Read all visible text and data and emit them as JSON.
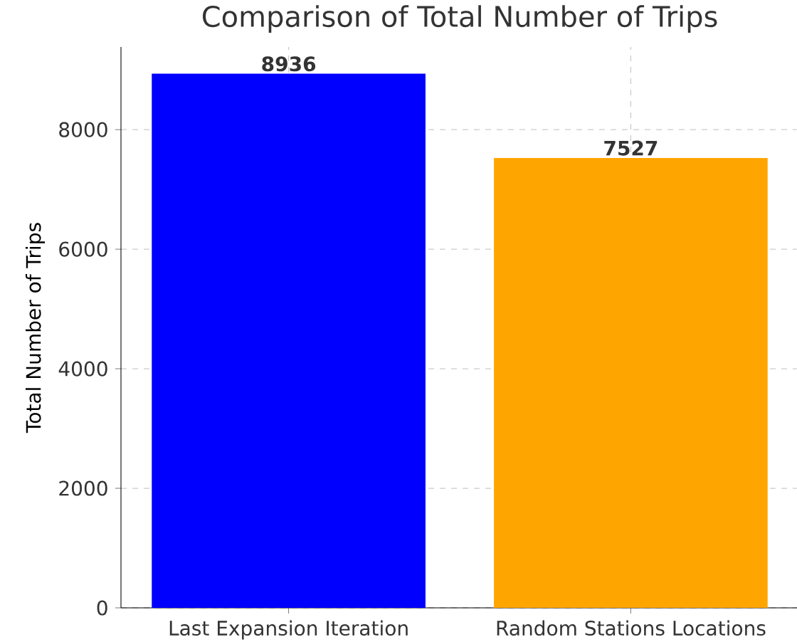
{
  "chart_data": {
    "type": "bar",
    "title": "Comparison of Total Number of Trips",
    "ylabel": "Total Number of Trips",
    "categories": [
      "Last Expansion Iteration",
      "Random Stations Locations"
    ],
    "values": [
      8936,
      7527
    ],
    "colors": [
      "#0000ff",
      "#ffa500"
    ],
    "ylim": [
      0,
      9383
    ],
    "yticks": [
      0,
      2000,
      4000,
      6000,
      8000
    ],
    "grid": true,
    "data_labels": true
  }
}
